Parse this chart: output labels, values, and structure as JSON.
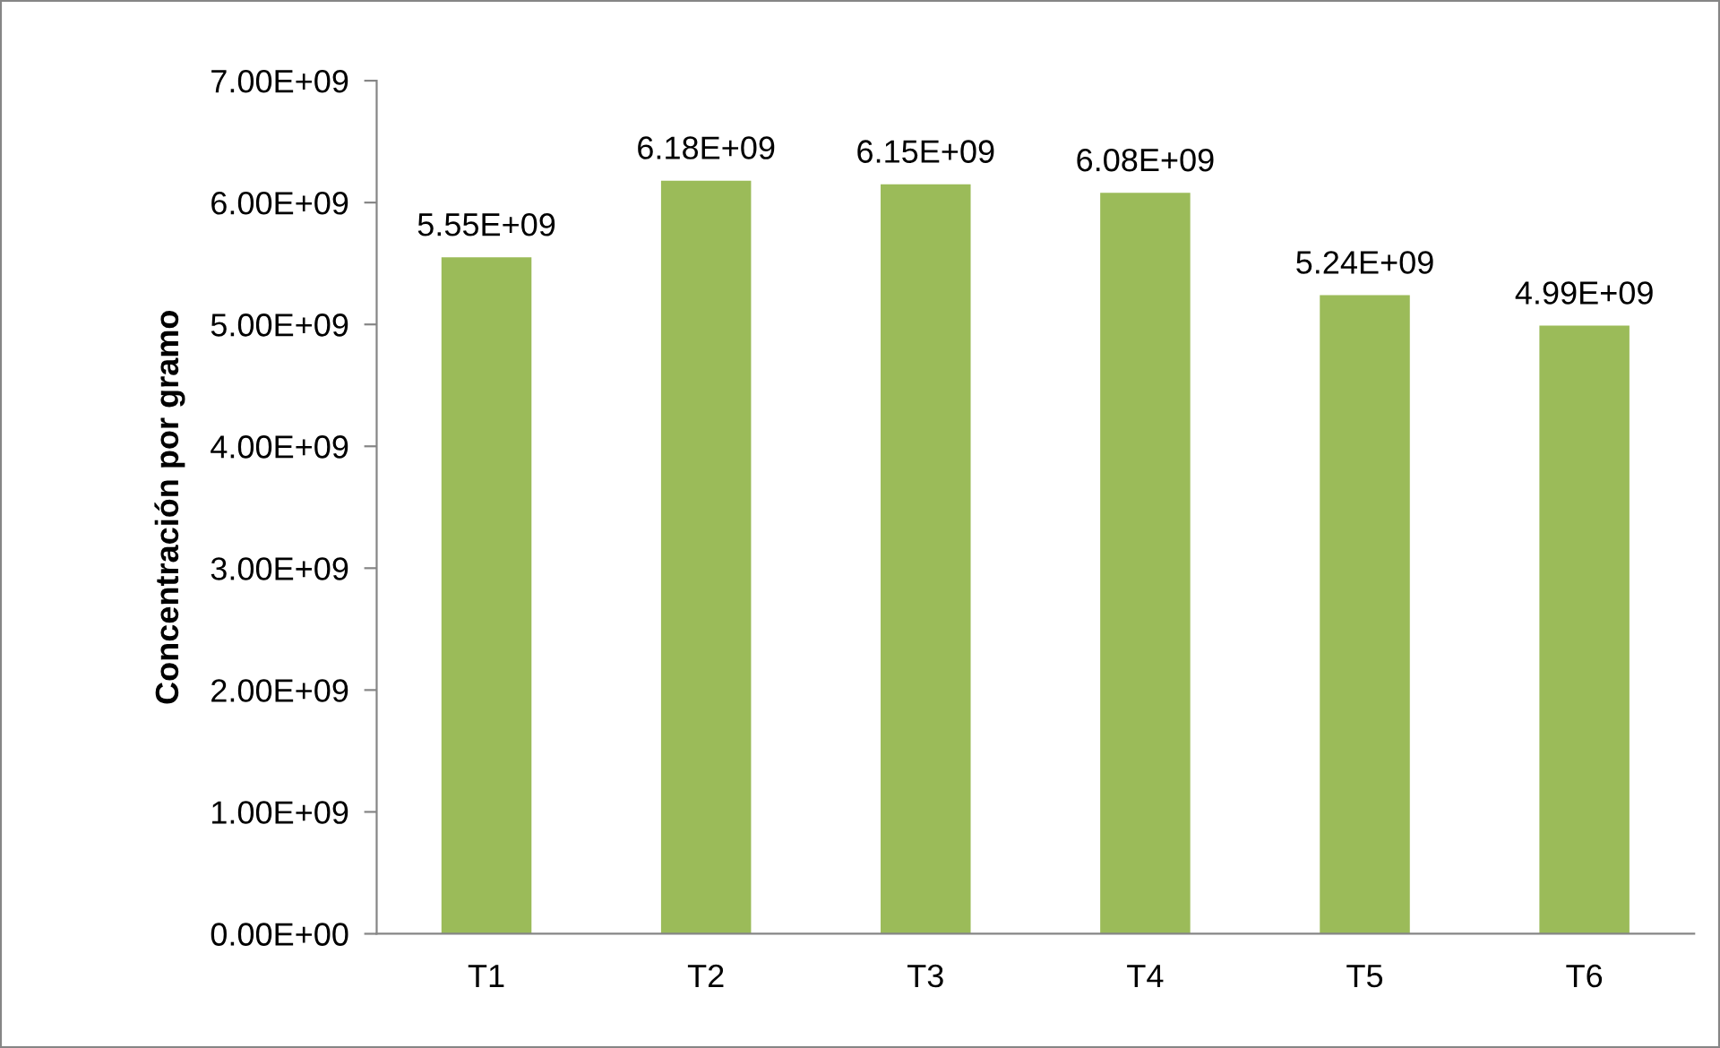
{
  "chart_data": {
    "type": "bar",
    "ylabel": "Concentración por gramo",
    "categories": [
      "T1",
      "T2",
      "T3",
      "T4",
      "T5",
      "T6"
    ],
    "values": [
      5550000000.0,
      6180000000.0,
      6150000000.0,
      6080000000.0,
      5240000000.0,
      4990000000.0
    ],
    "value_labels": [
      "5.55E+09",
      "6.18E+09",
      "6.15E+09",
      "6.08E+09",
      "5.24E+09",
      "4.99E+09"
    ],
    "color": "#9bbb59",
    "ylim": [
      0,
      7000000000.0
    ],
    "yticks": [
      {
        "value": 0,
        "label": "0.00E+00"
      },
      {
        "value": 1000000000.0,
        "label": "1.00E+09"
      },
      {
        "value": 2000000000.0,
        "label": "2.00E+09"
      },
      {
        "value": 3000000000.0,
        "label": "3.00E+09"
      },
      {
        "value": 4000000000.0,
        "label": "4.00E+09"
      },
      {
        "value": 5000000000.0,
        "label": "5.00E+09"
      },
      {
        "value": 6000000000.0,
        "label": "6.00E+09"
      },
      {
        "value": 7000000000.0,
        "label": "7.00E+09"
      }
    ],
    "grid": false,
    "legend": false
  }
}
